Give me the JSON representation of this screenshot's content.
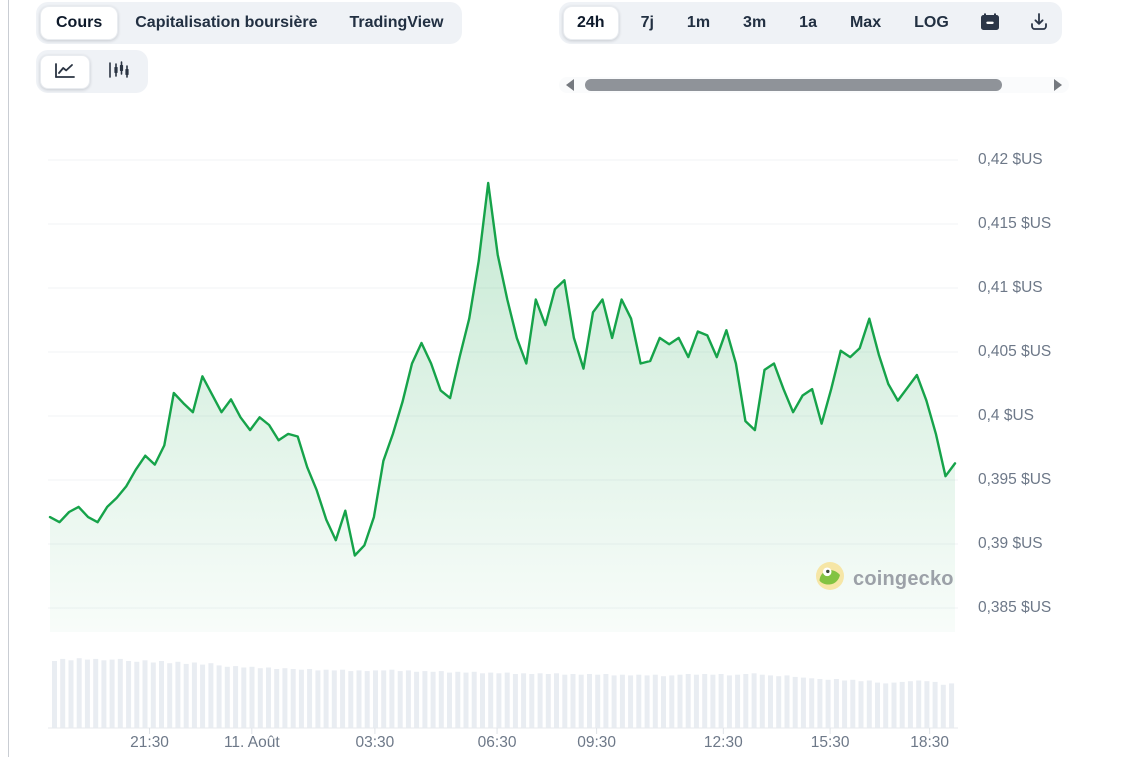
{
  "panel": {
    "tabs": [
      {
        "label": "Cours",
        "active": true
      },
      {
        "label": "Capitalisation boursière",
        "active": false
      },
      {
        "label": "TradingView",
        "active": false
      }
    ],
    "chart_types": [
      {
        "name": "line-chart",
        "active": true
      },
      {
        "name": "candlestick-chart",
        "active": false
      }
    ],
    "ranges": [
      {
        "label": "24h",
        "active": true
      },
      {
        "label": "7j",
        "active": false
      },
      {
        "label": "1m",
        "active": false
      },
      {
        "label": "3m",
        "active": false
      },
      {
        "label": "1a",
        "active": false
      },
      {
        "label": "Max",
        "active": false
      },
      {
        "label": "LOG",
        "active": false
      }
    ],
    "toolbar_icons": [
      "calendar-icon",
      "download-icon"
    ],
    "watermark_text": "coingecko"
  },
  "chart_data": {
    "type": "area",
    "title": "",
    "xlabel": "",
    "ylabel": "",
    "currency": "$US",
    "grid": true,
    "legend": false,
    "ylim": [
      0.3831,
      0.4216
    ],
    "colors": {
      "line": "#16a34a",
      "area_top": "rgba(34,170,85,0.26)",
      "area_bottom": "rgba(34,170,85,0.03)",
      "gridline": "#f1f3f6",
      "axis_text": "#6d7888",
      "volume_bar": "#e9edf2",
      "baseline": "#e7eaee",
      "group_bg": "#eff2f6",
      "scroll_thumb": "#8f9399"
    },
    "y_axis": [
      {
        "value": 0.42,
        "label": "0,42 $US"
      },
      {
        "value": 0.415,
        "label": "0,415 $US"
      },
      {
        "value": 0.41,
        "label": "0,41 $US"
      },
      {
        "value": 0.405,
        "label": "0,405 $US"
      },
      {
        "value": 0.4,
        "label": "0,4 $US"
      },
      {
        "value": 0.395,
        "label": "0,395 $US"
      },
      {
        "value": 0.39,
        "label": "0,39 $US"
      },
      {
        "value": 0.385,
        "label": "0,385 $US"
      }
    ],
    "x_ticks": [
      {
        "label": "21:30",
        "pos": 0.11
      },
      {
        "label": "11. Août",
        "pos": 0.223
      },
      {
        "label": "03:30",
        "pos": 0.359
      },
      {
        "label": "06:30",
        "pos": 0.494
      },
      {
        "label": "09:30",
        "pos": 0.604
      },
      {
        "label": "12:30",
        "pos": 0.744
      },
      {
        "label": "15:30",
        "pos": 0.862
      },
      {
        "label": "18:30",
        "pos": 0.972
      }
    ],
    "series": [
      {
        "name": "price",
        "values": [
          0.3921,
          0.3917,
          0.3925,
          0.3929,
          0.3921,
          0.3917,
          0.3929,
          0.3936,
          0.3945,
          0.3958,
          0.3969,
          0.3962,
          0.3977,
          0.4018,
          0.401,
          0.4003,
          0.4031,
          0.4017,
          0.4003,
          0.4013,
          0.3999,
          0.3989,
          0.3999,
          0.3993,
          0.3981,
          0.3986,
          0.3984,
          0.396,
          0.3942,
          0.3919,
          0.3903,
          0.3926,
          0.3891,
          0.3899,
          0.3921,
          0.3965,
          0.3986,
          0.4011,
          0.4041,
          0.4057,
          0.4041,
          0.402,
          0.4014,
          0.4046,
          0.4076,
          0.4121,
          0.4182,
          0.4126,
          0.4091,
          0.4061,
          0.4041,
          0.4091,
          0.4071,
          0.4099,
          0.4106,
          0.4061,
          0.4037,
          0.4081,
          0.4091,
          0.4061,
          0.4091,
          0.4076,
          0.4041,
          0.4043,
          0.4061,
          0.4056,
          0.4061,
          0.4046,
          0.4066,
          0.4063,
          0.4046,
          0.4067,
          0.4041,
          0.3996,
          0.3989,
          0.4036,
          0.4041,
          0.4021,
          0.4003,
          0.4016,
          0.4021,
          0.3994,
          0.4021,
          0.4051,
          0.4046,
          0.4053,
          0.4076,
          0.4048,
          0.4025,
          0.4012,
          0.4022,
          0.4032,
          0.4012,
          0.3986,
          0.3953,
          0.3963
        ]
      }
    ],
    "volume": {
      "relative_heights": [
        0.93,
        0.96,
        0.94,
        0.97,
        0.95,
        0.96,
        0.94,
        0.95,
        0.96,
        0.93,
        0.92,
        0.94,
        0.91,
        0.93,
        0.9,
        0.92,
        0.89,
        0.91,
        0.88,
        0.9,
        0.87,
        0.85,
        0.86,
        0.84,
        0.85,
        0.83,
        0.84,
        0.82,
        0.83,
        0.82,
        0.81,
        0.82,
        0.8,
        0.81,
        0.8,
        0.81,
        0.79,
        0.8,
        0.79,
        0.8,
        0.8,
        0.81,
        0.79,
        0.8,
        0.78,
        0.79,
        0.78,
        0.79,
        0.77,
        0.78,
        0.77,
        0.78,
        0.76,
        0.77,
        0.76,
        0.77,
        0.75,
        0.76,
        0.75,
        0.76,
        0.75,
        0.76,
        0.74,
        0.75,
        0.74,
        0.75,
        0.74,
        0.75,
        0.73,
        0.74,
        0.73,
        0.74,
        0.73,
        0.74,
        0.72,
        0.73,
        0.74,
        0.75,
        0.74,
        0.75,
        0.74,
        0.75,
        0.73,
        0.74,
        0.75,
        0.76,
        0.74,
        0.73,
        0.72,
        0.73,
        0.71,
        0.7,
        0.69,
        0.68,
        0.67,
        0.68,
        0.66,
        0.67,
        0.65,
        0.66,
        0.63,
        0.62,
        0.63,
        0.64,
        0.65,
        0.66,
        0.65,
        0.64,
        0.6,
        0.62
      ]
    }
  }
}
